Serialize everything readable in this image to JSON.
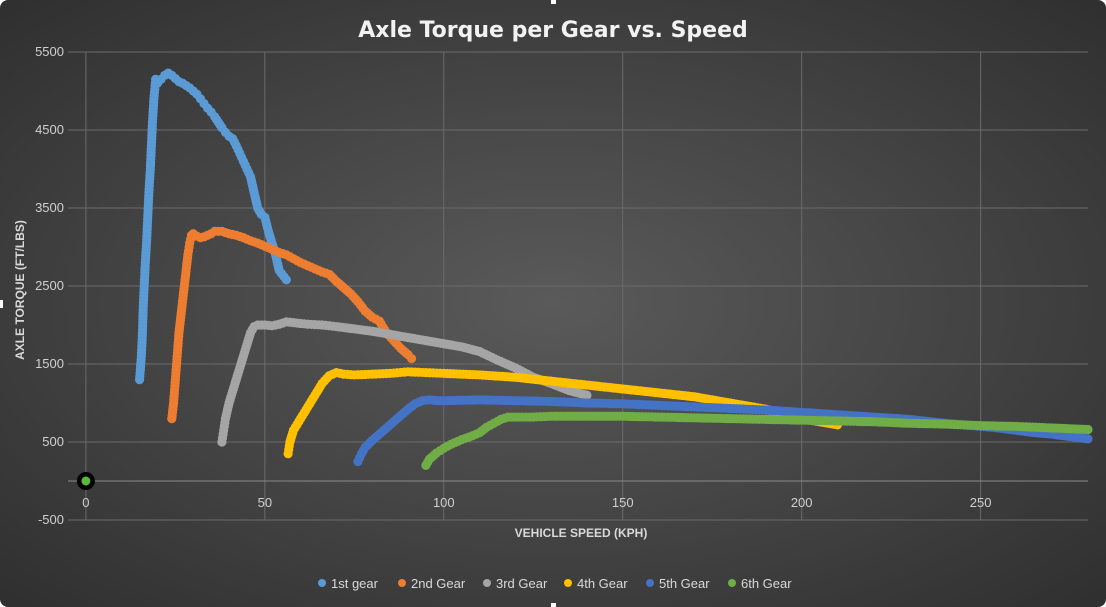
{
  "chart_data": {
    "type": "scatter",
    "title": "Axle Torque per Gear vs. Speed",
    "xlabel": "VEHICLE SPEED (KPH)",
    "ylabel": "AXLE TORQUE (FT/LBS)",
    "xlim": [
      -5,
      280
    ],
    "ylim": [
      -500,
      5500
    ],
    "xticks": [
      0,
      50,
      100,
      150,
      200,
      250
    ],
    "yticks": [
      -500,
      500,
      1500,
      2500,
      3500,
      4500,
      5500
    ],
    "grid": true,
    "legend_position": "bottom",
    "origin_point": {
      "x": 0,
      "y": 0,
      "color": "#5cb83c"
    },
    "series": [
      {
        "name": "1st gear",
        "color": "#5b9bd5",
        "x": [
          15,
          15.5,
          15.8,
          16,
          16.3,
          16.6,
          17,
          17.3,
          17.6,
          18,
          18.3,
          18.6,
          19,
          19.5,
          20,
          21,
          22,
          23,
          24,
          25,
          26,
          27,
          28,
          29,
          30,
          31,
          32,
          33,
          34,
          35,
          36,
          37,
          38,
          39,
          40,
          41,
          42,
          43,
          44,
          45,
          46,
          47,
          48,
          49,
          50,
          51,
          53,
          54,
          56
        ],
        "y": [
          1300,
          1600,
          1900,
          2200,
          2500,
          2800,
          3100,
          3400,
          3700,
          4000,
          4300,
          4600,
          4900,
          5150,
          5100,
          5150,
          5200,
          5230,
          5200,
          5160,
          5120,
          5100,
          5070,
          5040,
          5000,
          4960,
          4900,
          4840,
          4780,
          4730,
          4670,
          4600,
          4530,
          4470,
          4420,
          4390,
          4300,
          4200,
          4100,
          4000,
          3900,
          3700,
          3500,
          3420,
          3380,
          3200,
          2900,
          2700,
          2580
        ]
      },
      {
        "name": "2nd Gear",
        "color": "#ed7d31",
        "x": [
          24,
          24.5,
          25,
          25.5,
          26,
          26.5,
          27,
          27.5,
          28,
          28.5,
          29,
          29.5,
          30,
          31,
          32,
          33,
          34,
          35,
          36,
          38,
          40,
          42,
          44,
          46,
          48,
          50,
          52,
          54,
          56,
          58,
          60,
          62,
          64,
          66,
          68,
          70,
          72,
          74,
          76,
          78,
          80,
          82,
          84,
          86,
          88,
          90,
          91
        ],
        "y": [
          800,
          1000,
          1300,
          1600,
          1900,
          2100,
          2300,
          2500,
          2700,
          2900,
          3050,
          3150,
          3170,
          3140,
          3120,
          3130,
          3150,
          3170,
          3200,
          3200,
          3170,
          3150,
          3120,
          3080,
          3050,
          3010,
          2970,
          2930,
          2900,
          2850,
          2800,
          2760,
          2720,
          2680,
          2650,
          2560,
          2480,
          2400,
          2300,
          2180,
          2100,
          2050,
          1900,
          1800,
          1700,
          1620,
          1570
        ]
      },
      {
        "name": "3rd Gear",
        "color": "#a5a5a5",
        "x": [
          38,
          38.5,
          39,
          40,
          41,
          42,
          43,
          44,
          45,
          46,
          47,
          48,
          50,
          52,
          54,
          56,
          58,
          62,
          66,
          70,
          75,
          80,
          85,
          90,
          95,
          100,
          105,
          110,
          115,
          120,
          125,
          130,
          135,
          140
        ],
        "y": [
          500,
          650,
          800,
          1000,
          1150,
          1300,
          1450,
          1600,
          1750,
          1900,
          1980,
          2000,
          2000,
          1990,
          2010,
          2040,
          2030,
          2010,
          2000,
          1980,
          1950,
          1920,
          1880,
          1840,
          1800,
          1760,
          1720,
          1660,
          1550,
          1450,
          1330,
          1250,
          1160,
          1100
        ]
      },
      {
        "name": "4th Gear",
        "color": "#ffc000",
        "x": [
          56.5,
          57,
          58,
          60,
          62,
          64,
          66,
          68,
          70,
          72,
          75,
          80,
          85,
          90,
          95,
          100,
          110,
          120,
          130,
          140,
          150,
          160,
          170,
          180,
          190,
          195,
          200,
          205,
          210
        ],
        "y": [
          350,
          500,
          650,
          800,
          950,
          1100,
          1250,
          1350,
          1390,
          1370,
          1360,
          1370,
          1380,
          1400,
          1390,
          1380,
          1360,
          1330,
          1280,
          1230,
          1180,
          1130,
          1080,
          1000,
          920,
          860,
          800,
          760,
          720
        ]
      },
      {
        "name": "5th Gear",
        "color": "#4472c4",
        "x": [
          76,
          77,
          78,
          80,
          82,
          84,
          86,
          88,
          90,
          92,
          94,
          96,
          98,
          100,
          110,
          120,
          130,
          140,
          150,
          160,
          170,
          180,
          190,
          200,
          210,
          220,
          230,
          240,
          250,
          255,
          260,
          265,
          270,
          275,
          280
        ],
        "y": [
          250,
          350,
          430,
          520,
          600,
          680,
          760,
          840,
          920,
          990,
          1030,
          1040,
          1030,
          1030,
          1040,
          1030,
          1020,
          1000,
          990,
          970,
          950,
          930,
          910,
          880,
          850,
          820,
          790,
          740,
          700,
          680,
          650,
          620,
          600,
          570,
          540
        ]
      },
      {
        "name": "6th Gear",
        "color": "#70ad47",
        "x": [
          95,
          96,
          98,
          100,
          102,
          105,
          108,
          110,
          112,
          114,
          116,
          118,
          120,
          125,
          130,
          140,
          150,
          160,
          170,
          180,
          190,
          200,
          210,
          220,
          230,
          240,
          250,
          260,
          270,
          280
        ],
        "y": [
          200,
          280,
          360,
          420,
          470,
          530,
          580,
          620,
          690,
          740,
          790,
          820,
          820,
          820,
          830,
          830,
          830,
          820,
          810,
          800,
          790,
          780,
          770,
          760,
          740,
          730,
          710,
          700,
          680,
          660
        ]
      }
    ]
  }
}
